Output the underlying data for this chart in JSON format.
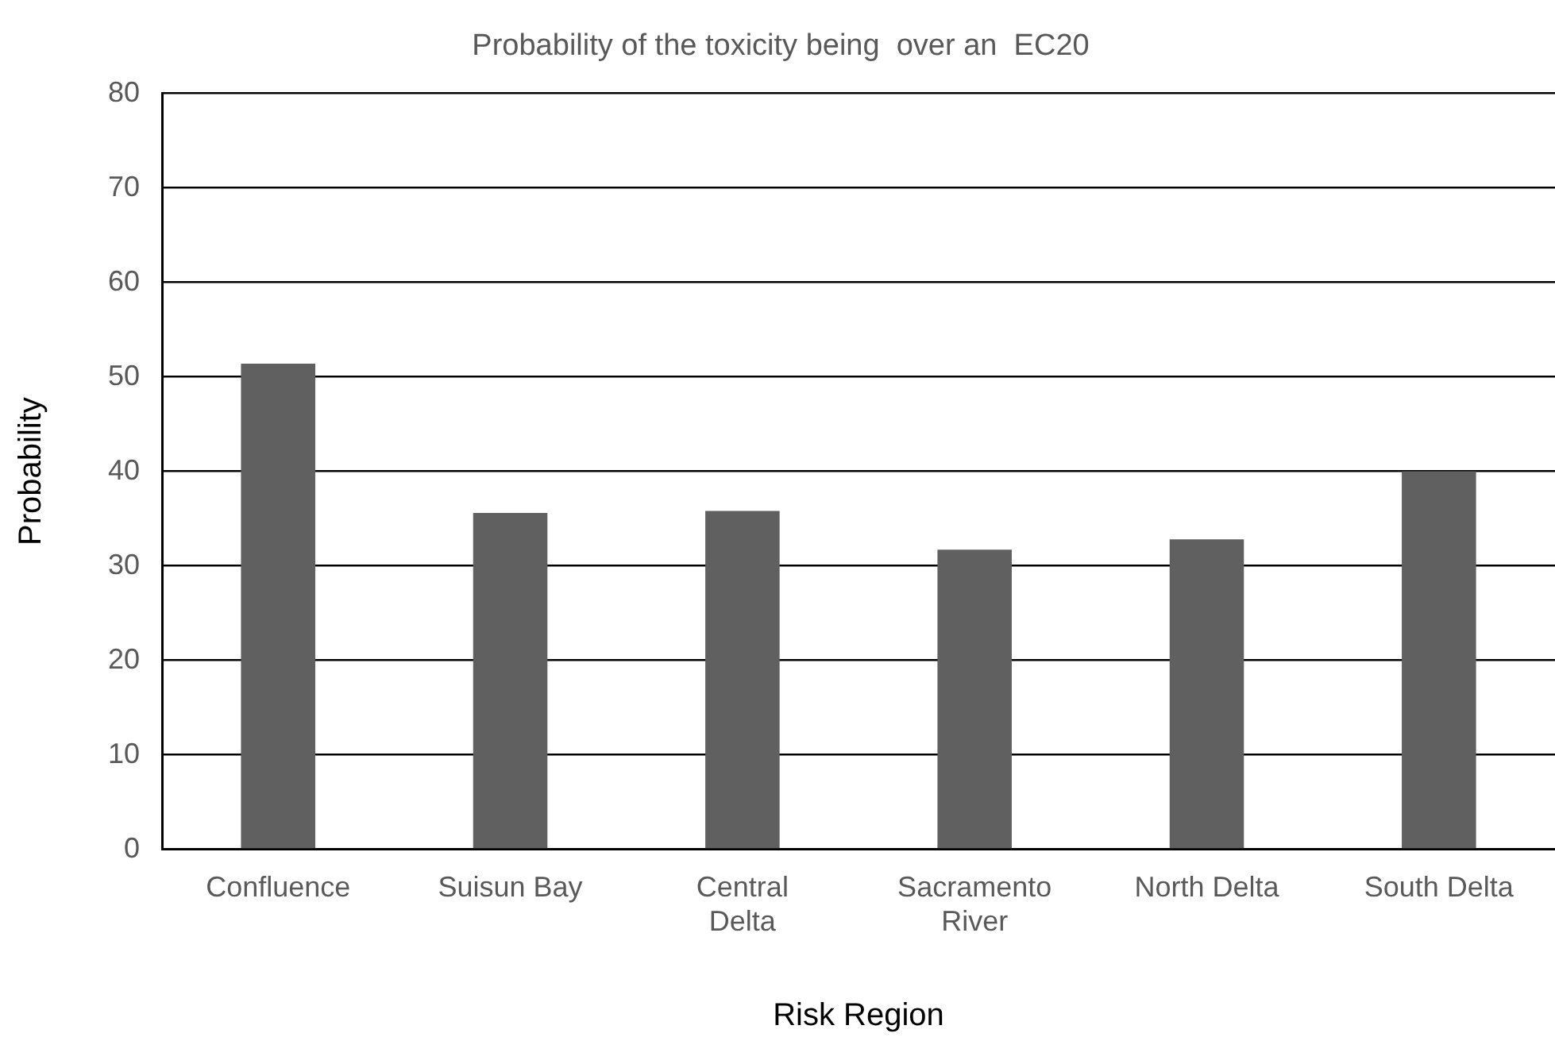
{
  "chart_data": {
    "type": "bar",
    "title": "Probability of the toxicity being  over an  EC20",
    "xlabel": "Risk Region",
    "ylabel": "Probability",
    "categories": [
      "Confluence",
      "Suisun Bay",
      "Central\nDelta",
      "Sacramento\nRiver",
      "North Delta",
      "South Delta"
    ],
    "values": [
      51.4,
      35.6,
      35.8,
      31.7,
      32.8,
      40
    ],
    "color": "#606060",
    "ylim": [
      0,
      80
    ],
    "yticks": [
      0,
      10,
      20,
      30,
      40,
      50,
      60,
      70,
      80
    ],
    "grid": "y",
    "legend": false
  }
}
